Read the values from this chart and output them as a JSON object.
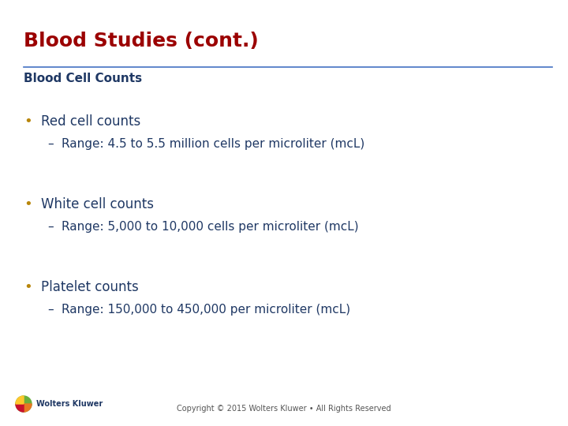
{
  "title": "Blood Studies (cont.)",
  "title_color": "#9B0000",
  "title_fontsize": 18,
  "subtitle": "Blood Cell Counts",
  "subtitle_color": "#1F3864",
  "subtitle_fontsize": 11,
  "separator_color": "#4472C4",
  "background_color": "#FFFFFF",
  "bullet_color": "#B8860B",
  "text_color": "#1F3864",
  "bullet_fontsize": 12,
  "sub_bullet_fontsize": 11,
  "bullets": [
    {
      "text": "Red cell counts",
      "sub": "Range: 4.5 to 5.5 million cells per microliter (mcL)"
    },
    {
      "text": "White cell counts",
      "sub": "Range: 5,000 to 10,000 cells per microliter (mcL)"
    },
    {
      "text": "Platelet counts",
      "sub": "Range: 150,000 to 450,000 per microliter (mcL)"
    }
  ],
  "footer_text": "Copyright © 2015 Wolters Kluwer • All Rights Reserved",
  "footer_color": "#555555",
  "footer_fontsize": 7,
  "logo_text": "Wolters Kluwer",
  "logo_color": "#1F3864",
  "logo_fontsize": 7
}
